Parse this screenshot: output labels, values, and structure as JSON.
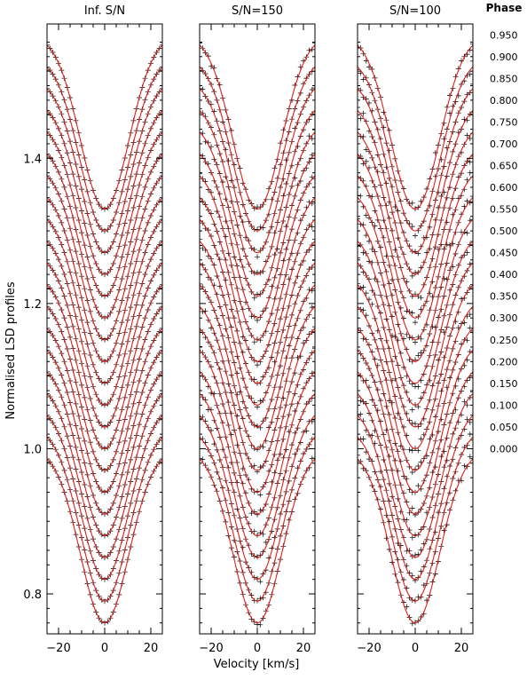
{
  "chart_data": {
    "type": "line",
    "ylabel": "Normalised LSD profiles",
    "xlabel": "Velocity [km/s]",
    "xlim": [
      -25,
      25
    ],
    "ylim": [
      0.745,
      1.585
    ],
    "xticks": [
      -20,
      0,
      20
    ],
    "yticks": [
      0.8,
      1.0,
      1.2,
      1.4
    ],
    "ytick_labels": [
      "0.8",
      "1.0",
      "1.2",
      "1.4"
    ],
    "phase_title": "Phase",
    "phases": [
      "0.000",
      "0.050",
      "0.100",
      "0.150",
      "0.200",
      "0.250",
      "0.300",
      "0.350",
      "0.400",
      "0.450",
      "0.500",
      "0.550",
      "0.600",
      "0.650",
      "0.700",
      "0.750",
      "0.800",
      "0.850",
      "0.900",
      "0.950"
    ],
    "profile_model": {
      "continuum_start": 1.0,
      "continuum_step": 0.03,
      "line_depth": 0.24,
      "line_sigma_kms": 10.5
    },
    "panels": [
      {
        "title": "Inf. S/N",
        "noise": 0.0
      },
      {
        "title": "S/N=150",
        "noise": 0.004
      },
      {
        "title": "S/N=100",
        "noise": 0.006
      }
    ],
    "observed_color": "#000000",
    "model_color": "#e0201b"
  }
}
